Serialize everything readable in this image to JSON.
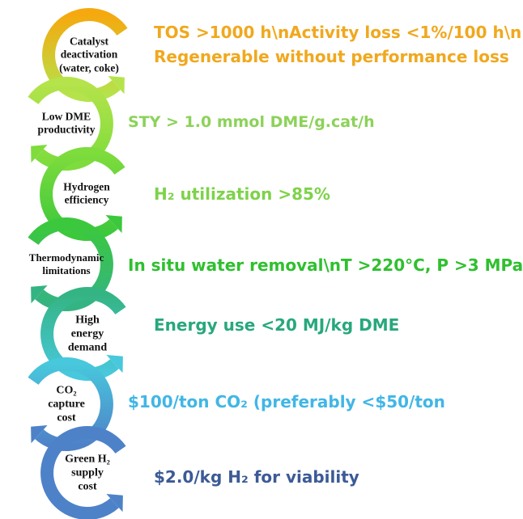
{
  "items": [
    {
      "label": [
        "Catalyst",
        "deactivation",
        "(water, coke)"
      ],
      "requirement": [
        "TOS >1000 h\\nActivity loss <1%/100 h\\n",
        "Regenerable without performance loss"
      ],
      "color": "#f5a90e"
    },
    {
      "label": [
        "Low DME",
        "productivity"
      ],
      "requirement": [
        "STY > 1.0 mmol DME/g.cat/h"
      ],
      "color": "#b5e34b"
    },
    {
      "label": [
        "Hydrogen",
        "efficiency"
      ],
      "requirement": [
        "H₂ utilization >85%"
      ],
      "color": "#7edc3c"
    },
    {
      "label": [
        "Thermodynamic",
        "limitations"
      ],
      "requirement": [
        "In situ water removal\\nT >220°C, P >3 MPa"
      ],
      "color": "#3cc83c"
    },
    {
      "label": [
        "High",
        "energy",
        "demand"
      ],
      "requirement": [
        "Energy use <20 MJ/kg DME"
      ],
      "color": "#34b482"
    },
    {
      "label": [
        "CO₂",
        "capture",
        "cost"
      ],
      "requirement": [
        "$100/ton CO₂ (preferably <$50/ton"
      ],
      "color": "#48c8dc"
    },
    {
      "label": [
        "Green H₂",
        "supply",
        "cost"
      ],
      "requirement": [
        "$2.0/kg H₂ for viability"
      ],
      "color": "#4e82c8"
    }
  ],
  "text_colors": [
    "#f0a81e",
    "#8cd25a",
    "#7ed24a",
    "#2fc02f",
    "#28a87c",
    "#41b6e6",
    "#3c5a96"
  ]
}
